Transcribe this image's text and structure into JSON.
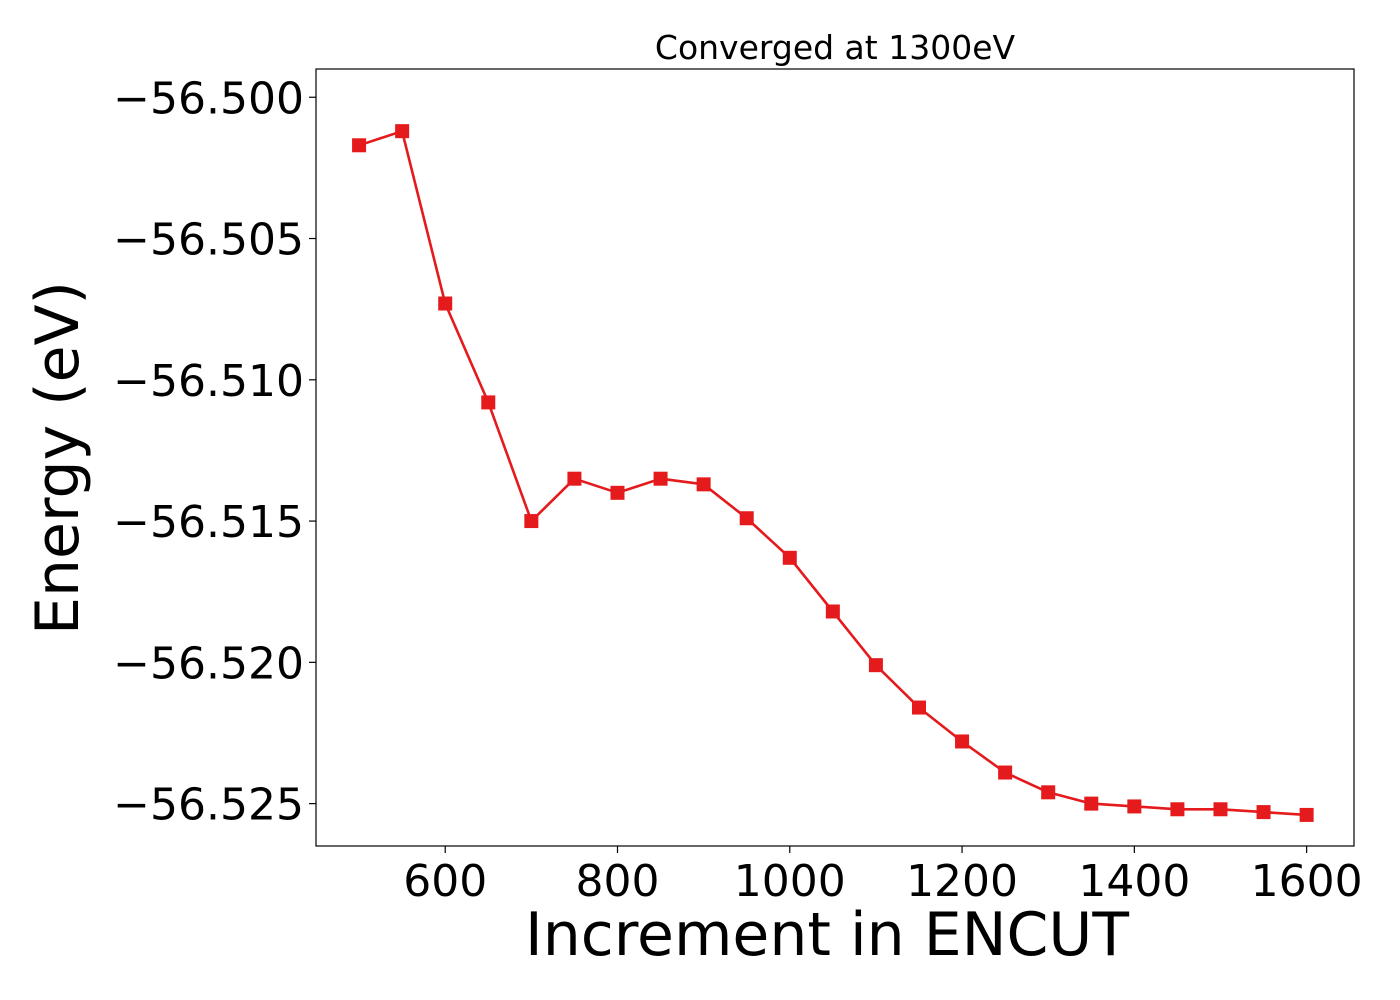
{
  "chart_data": {
    "type": "line",
    "title": "Converged at 1300eV",
    "xlabel": "Increment in ENCUT",
    "ylabel": "Energy (eV)",
    "xlim": [
      450,
      1655
    ],
    "ylim": [
      -56.5265,
      -56.499
    ],
    "xticks": [
      600,
      800,
      1000,
      1200,
      1400,
      1600
    ],
    "xtick_labels": [
      "600",
      "800",
      "1000",
      "1200",
      "1400",
      "1600"
    ],
    "yticks": [
      -56.5,
      -56.505,
      -56.51,
      -56.515,
      -56.52,
      -56.525
    ],
    "ytick_labels": [
      "−56.500",
      "−56.505",
      "−56.510",
      "−56.515",
      "−56.520",
      "−56.525"
    ],
    "grid": false,
    "legend": "none",
    "series": [
      {
        "color": "#e41a1c",
        "marker": "square",
        "x": [
          500,
          550,
          600,
          650,
          700,
          750,
          800,
          850,
          900,
          950,
          1000,
          1050,
          1100,
          1150,
          1200,
          1250,
          1300,
          1350,
          1400,
          1450,
          1500,
          1550,
          1600
        ],
        "y": [
          -56.5017,
          -56.5012,
          -56.5073,
          -56.5108,
          -56.515,
          -56.5135,
          -56.514,
          -56.5135,
          -56.5137,
          -56.5149,
          -56.5163,
          -56.5182,
          -56.5201,
          -56.5216,
          -56.5228,
          -56.5239,
          -56.5246,
          -56.525,
          -56.5251,
          -56.5252,
          -56.5252,
          -56.5253,
          -56.5254
        ]
      }
    ]
  }
}
